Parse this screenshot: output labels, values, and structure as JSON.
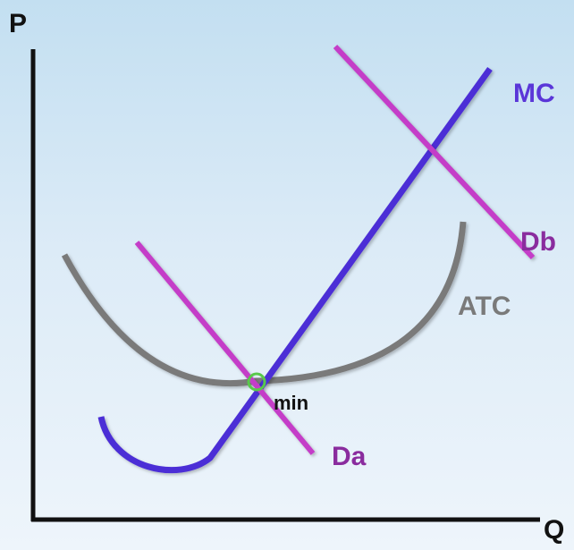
{
  "axes": {
    "y_label": "P",
    "x_label": "Q"
  },
  "curves": {
    "mc": {
      "label": "MC",
      "color": "#4b2fd6"
    },
    "atc": {
      "label": "ATC",
      "color": "#7a7a7a"
    },
    "da": {
      "label": "Da",
      "color": "#c43cc8"
    },
    "db": {
      "label": "Db",
      "color": "#c43cc8"
    }
  },
  "point": {
    "label": "min",
    "color": "#58c94a"
  },
  "colors": {
    "axis": "#111111",
    "label_purple": "#8a2c9e",
    "label_gray": "#7a7a7a",
    "label_mc": "#5a36d8"
  }
}
